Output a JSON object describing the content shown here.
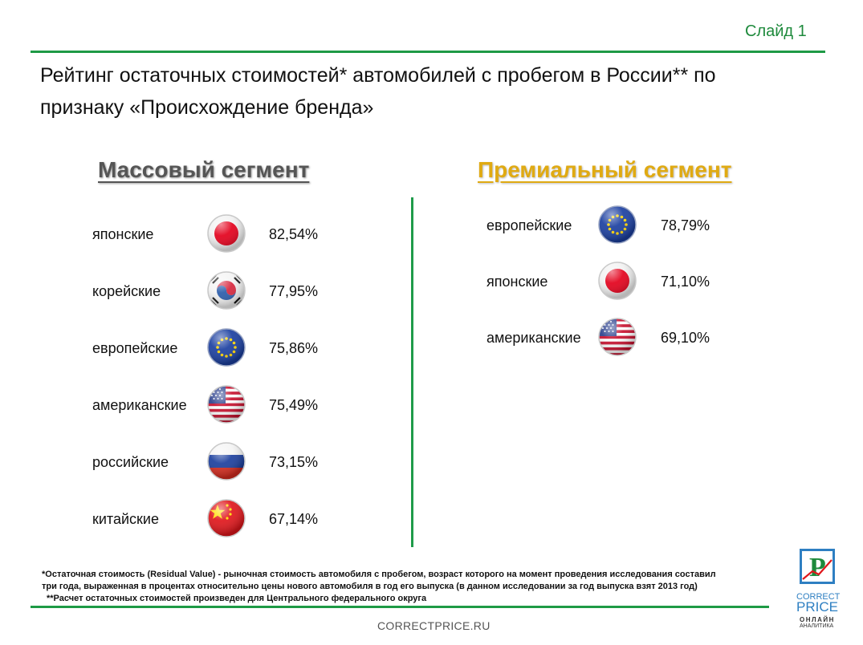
{
  "slide_label": "Слайд 1",
  "title": "Рейтинг остаточных стоимостей* автомобилей с пробегом в России** по признаку «Происхождение бренда»",
  "mass": {
    "heading": "Массовый сегмент",
    "rows": [
      {
        "label": "японские",
        "value": "82,54%",
        "flag": "japan-flag-icon"
      },
      {
        "label": "корейские",
        "value": "77,95%",
        "flag": "korea-flag-icon"
      },
      {
        "label": "европейские",
        "value": "75,86%",
        "flag": "eu-flag-icon"
      },
      {
        "label": "американские",
        "value": "75,49%",
        "flag": "usa-flag-icon"
      },
      {
        "label": "российские",
        "value": "73,15%",
        "flag": "russia-flag-icon"
      },
      {
        "label": "китайские",
        "value": "67,14%",
        "flag": "china-flag-icon"
      }
    ]
  },
  "premium": {
    "heading": "Премиальный сегмент",
    "rows": [
      {
        "label": "европейские",
        "value": "78,79%",
        "flag": "eu-flag-icon"
      },
      {
        "label": "японские",
        "value": "71,10%",
        "flag": "japan-flag-icon"
      },
      {
        "label": "американские",
        "value": "69,10%",
        "flag": "usa-flag-icon"
      }
    ]
  },
  "footnotes": {
    "line1": "*Остаточная стоимость (Residual Value) - рыночная стоимость автомобиля с пробегом, возраст которого на момент проведения исследования составил",
    "line2": "три года, выраженная в процентах относительно цены нового автомобиля в год его выпуска (в данном исследовании за год выпуска взят 2013 год)",
    "line3": "**Расчет остаточных стоимостей произведен для Центрального федерального округа"
  },
  "site": "CORRECTPRICE.RU",
  "logo": {
    "letter": "P",
    "line1": "CORRECT",
    "line2": "PRICE",
    "line3": "ОНЛАЙН",
    "line4": "АНАЛИТИКА"
  },
  "colors": {
    "accent_green": "#1e9a45",
    "mass_heading": "#555555",
    "premium_heading": "#e0aa12",
    "logo_blue": "#2e7fc2"
  }
}
